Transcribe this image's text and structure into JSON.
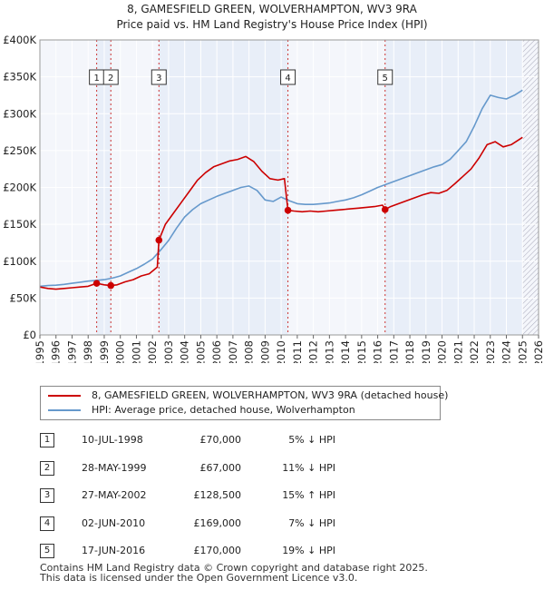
{
  "title": {
    "line1": "8, GAMESFIELD GREEN, WOLVERHAMPTON, WV3 9RA",
    "line2": "Price paid vs. HM Land Registry's House Price Index (HPI)"
  },
  "colors": {
    "property": "#cc0000",
    "hpi": "#6699cc",
    "shade": "#e8eef8",
    "grid": "#ffffff",
    "marker_line": "#cc3333"
  },
  "chart_data": {
    "type": "line",
    "title": "8, GAMESFIELD GREEN, WOLVERHAMPTON, WV3 9RA — Price paid vs. HM Land Registry's House Price Index (HPI)",
    "xlabel": "",
    "ylabel": "",
    "xlim": [
      1995,
      2026
    ],
    "ylim": [
      0,
      400000
    ],
    "y_ticks": [
      0,
      50000,
      100000,
      150000,
      200000,
      250000,
      300000,
      350000,
      400000
    ],
    "y_tick_labels": [
      "£0",
      "£50K",
      "£100K",
      "£150K",
      "£200K",
      "£250K",
      "£300K",
      "£350K",
      "£400K"
    ],
    "x_ticks": [
      1995,
      1996,
      1997,
      1998,
      1999,
      2000,
      2001,
      2002,
      2003,
      2004,
      2005,
      2006,
      2007,
      2008,
      2009,
      2010,
      2011,
      2012,
      2013,
      2014,
      2015,
      2016,
      2017,
      2018,
      2019,
      2020,
      2021,
      2022,
      2023,
      2024,
      2025,
      2026
    ],
    "x_tick_labels": [
      "1995",
      "1996",
      "1997",
      "1998",
      "1999",
      "2000",
      "2001",
      "2002",
      "2003",
      "2004",
      "2005",
      "2006",
      "2007",
      "2008",
      "2009",
      "2010",
      "2011",
      "2012",
      "2013",
      "2014",
      "2015",
      "2016",
      "2017",
      "2018",
      "2019",
      "2020",
      "2021",
      "2022",
      "2023",
      "2024",
      "2025",
      "2026"
    ],
    "shaded_spans": [
      [
        1998.53,
        1999.41
      ],
      [
        2002.4,
        2010.42
      ],
      [
        2016.46,
        2025.0
      ]
    ],
    "hatched_after": 2025.0,
    "grid": true,
    "series": [
      {
        "name": "8, GAMESFIELD GREEN, WOLVERHAMPTON, WV3 9RA (detached house)",
        "color": "#cc0000",
        "x": [
          1995.0,
          1995.5,
          1996.0,
          1996.5,
          1997.0,
          1997.5,
          1998.0,
          1998.53,
          1999.0,
          1999.41,
          1999.8,
          2000.3,
          2000.8,
          2001.3,
          2001.8,
          2002.3,
          2002.4,
          2002.8,
          2003.3,
          2003.8,
          2004.3,
          2004.8,
          2005.3,
          2005.8,
          2006.3,
          2006.8,
          2007.3,
          2007.8,
          2008.3,
          2008.8,
          2009.3,
          2009.8,
          2010.2,
          2010.42,
          2010.8,
          2011.3,
          2011.8,
          2012.3,
          2012.8,
          2013.3,
          2013.8,
          2014.3,
          2014.8,
          2015.3,
          2015.8,
          2016.3,
          2016.46,
          2016.8,
          2017.3,
          2017.8,
          2018.3,
          2018.8,
          2019.3,
          2019.8,
          2020.3,
          2020.8,
          2021.3,
          2021.8,
          2022.3,
          2022.8,
          2023.3,
          2023.8,
          2024.3,
          2024.8,
          2025.0
        ],
        "values": [
          65000,
          63000,
          62000,
          63000,
          64000,
          65000,
          66000,
          70000,
          68000,
          67000,
          68000,
          72000,
          75000,
          80000,
          83000,
          92000,
          128500,
          150000,
          165000,
          180000,
          195000,
          210000,
          220000,
          228000,
          232000,
          236000,
          238000,
          242000,
          235000,
          222000,
          212000,
          210000,
          212000,
          169000,
          168000,
          167000,
          168000,
          167000,
          168000,
          169000,
          170000,
          171000,
          172000,
          173000,
          174000,
          176000,
          170000,
          174000,
          178000,
          182000,
          186000,
          190000,
          193000,
          192000,
          196000,
          205000,
          215000,
          225000,
          240000,
          258000,
          262000,
          255000,
          258000,
          265000,
          268000
        ]
      },
      {
        "name": "HPI: Average price, detached house, Wolverhampton",
        "color": "#6699cc",
        "x": [
          1995.0,
          1995.5,
          1996.0,
          1996.5,
          1997.0,
          1997.5,
          1998.0,
          1998.5,
          1999.0,
          1999.5,
          2000.0,
          2000.5,
          2001.0,
          2001.5,
          2002.0,
          2002.5,
          2003.0,
          2003.5,
          2004.0,
          2004.5,
          2005.0,
          2005.5,
          2006.0,
          2006.5,
          2007.0,
          2007.5,
          2008.0,
          2008.5,
          2009.0,
          2009.5,
          2010.0,
          2010.5,
          2011.0,
          2011.5,
          2012.0,
          2012.5,
          2013.0,
          2013.5,
          2014.0,
          2014.5,
          2015.0,
          2015.5,
          2016.0,
          2016.5,
          2017.0,
          2017.5,
          2018.0,
          2018.5,
          2019.0,
          2019.5,
          2020.0,
          2020.5,
          2021.0,
          2021.5,
          2022.0,
          2022.5,
          2023.0,
          2023.5,
          2024.0,
          2024.5,
          2025.0
        ],
        "values": [
          66000,
          67000,
          67500,
          68500,
          70000,
          71500,
          73000,
          74000,
          75000,
          77000,
          80000,
          85000,
          90000,
          96000,
          103000,
          115000,
          128000,
          145000,
          160000,
          170000,
          178000,
          183000,
          188000,
          192000,
          196000,
          200000,
          202000,
          196000,
          183000,
          181000,
          187000,
          182000,
          178000,
          177000,
          177000,
          178000,
          179000,
          181000,
          183000,
          186000,
          190000,
          195000,
          200000,
          204000,
          208000,
          212000,
          216000,
          220000,
          224000,
          228000,
          231000,
          238000,
          250000,
          262000,
          283000,
          307000,
          325000,
          322000,
          320000,
          325000,
          332000
        ]
      }
    ],
    "sales": [
      {
        "label": "1",
        "x": 1998.53,
        "value": 70000
      },
      {
        "label": "2",
        "x": 1999.41,
        "value": 67000
      },
      {
        "label": "3",
        "x": 2002.4,
        "value": 128500
      },
      {
        "label": "4",
        "x": 2010.42,
        "value": 169000
      },
      {
        "label": "5",
        "x": 2016.46,
        "value": 170000
      }
    ]
  },
  "legend": [
    {
      "label": "8, GAMESFIELD GREEN, WOLVERHAMPTON, WV3 9RA (detached house)",
      "color": "#cc0000"
    },
    {
      "label": "HPI: Average price, detached house, Wolverhampton",
      "color": "#6699cc"
    }
  ],
  "sales_table": [
    {
      "num": "1",
      "date": "10-JUL-1998",
      "price": "£70,000",
      "hpi": "5% ↓ HPI"
    },
    {
      "num": "2",
      "date": "28-MAY-1999",
      "price": "£67,000",
      "hpi": "11% ↓ HPI"
    },
    {
      "num": "3",
      "date": "27-MAY-2002",
      "price": "£128,500",
      "hpi": "15% ↑ HPI"
    },
    {
      "num": "4",
      "date": "02-JUN-2010",
      "price": "£169,000",
      "hpi": "7% ↓ HPI"
    },
    {
      "num": "5",
      "date": "17-JUN-2016",
      "price": "£170,000",
      "hpi": "19% ↓ HPI"
    }
  ],
  "footer": {
    "line1": "Contains HM Land Registry data © Crown copyright and database right 2025.",
    "line2": "This data is licensed under the Open Government Licence v3.0."
  }
}
